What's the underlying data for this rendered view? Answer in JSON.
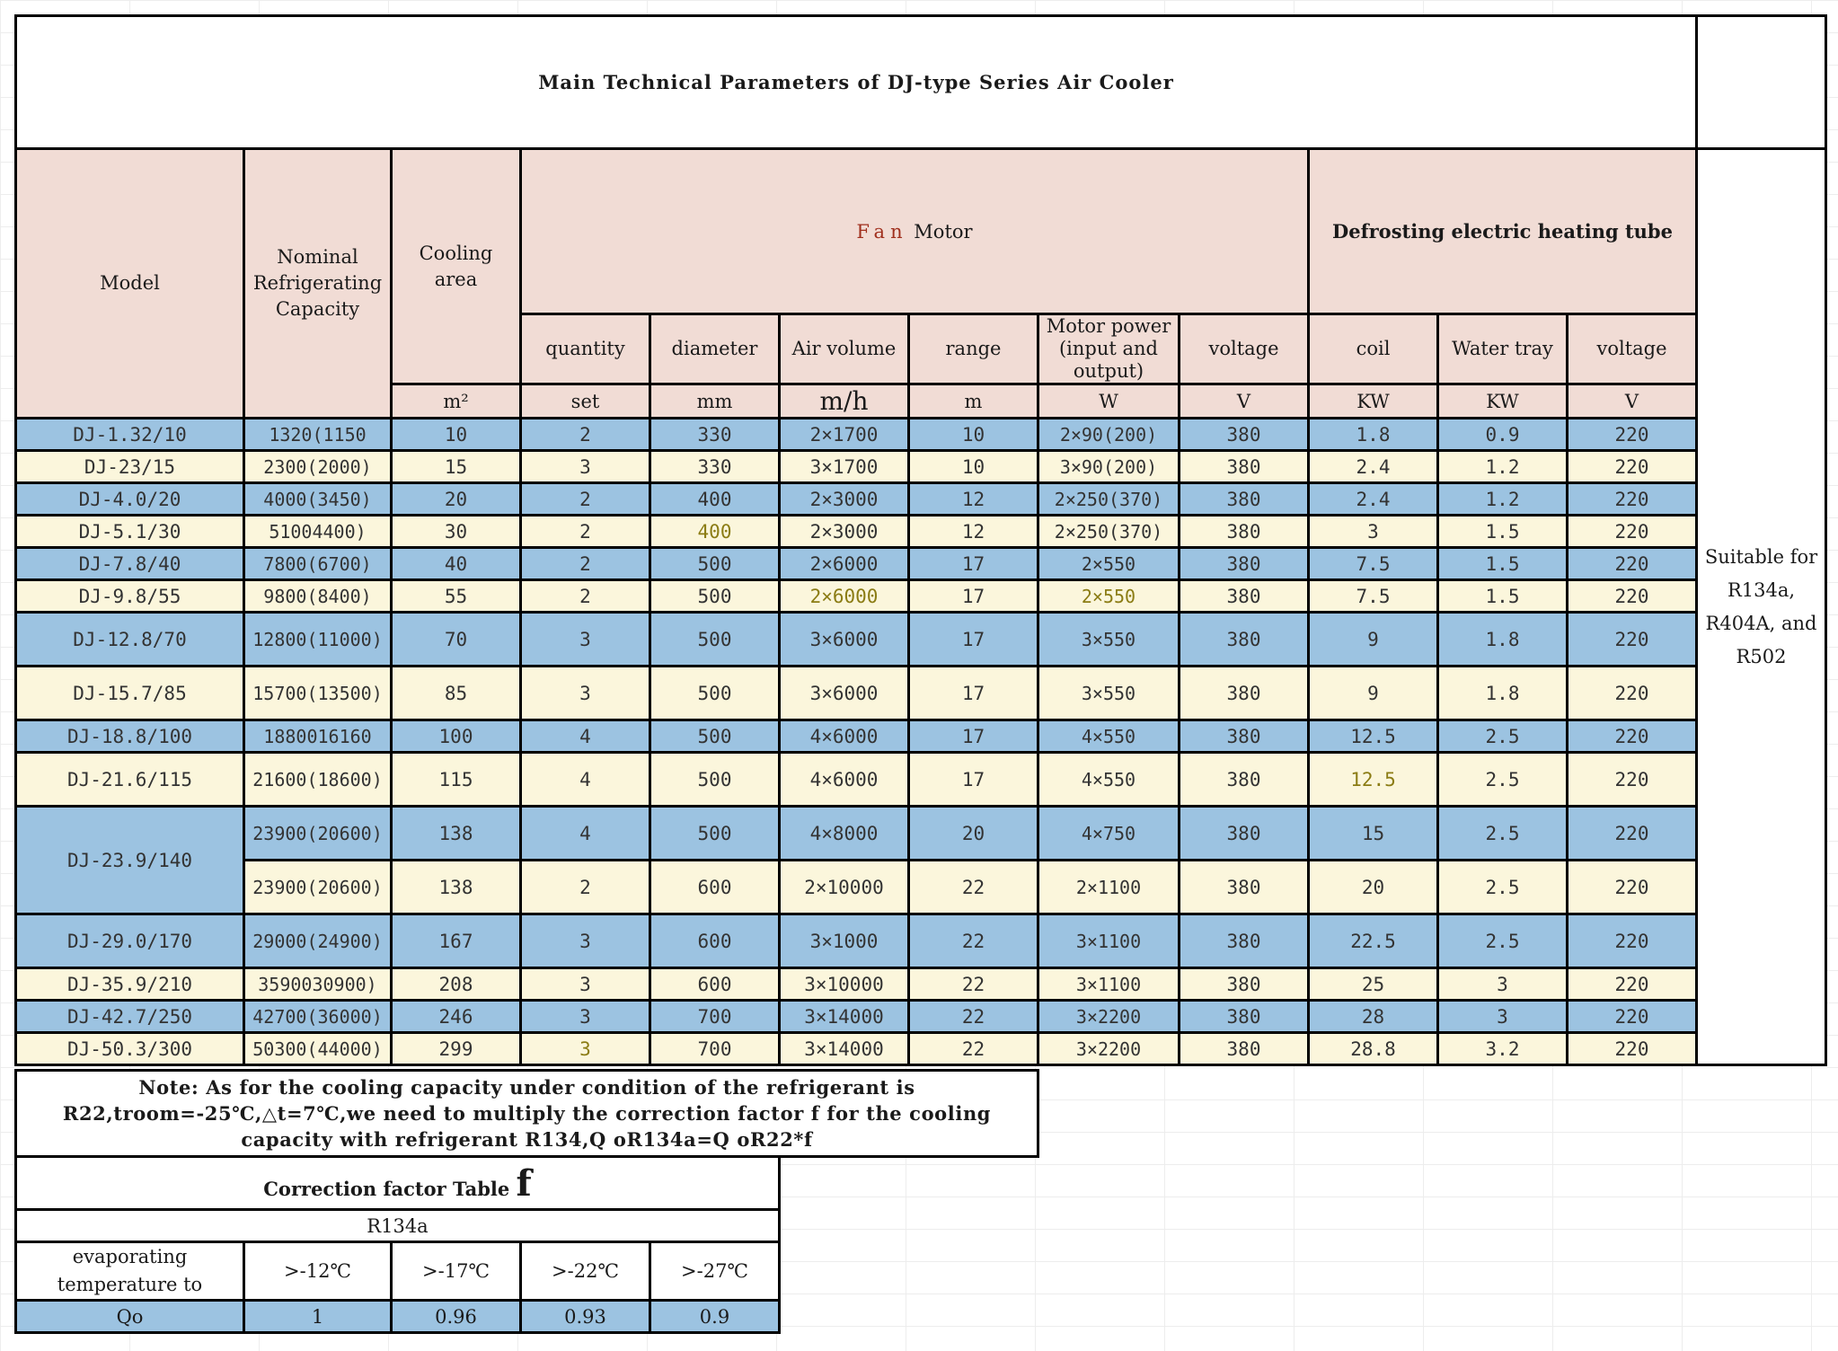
{
  "title": "Main Technical Parameters of DJ-type Series Air Cooler",
  "headers": {
    "model": "Model",
    "nominal": "Nominal Refrigerating Capacity",
    "cooling_area": "Cooling area",
    "fan_motor_fan": "Fan",
    "fan_motor_motor": "Motor",
    "defrost": "Defrosting electric heating tube",
    "quantity": "quantity",
    "diameter": "diameter",
    "air_volume": "Air volume",
    "range": "range",
    "motor_power": "Motor power (input and output)",
    "voltage_fan": "voltage",
    "coil": "coil",
    "water_tray": "Water tray",
    "voltage_def": "voltage"
  },
  "units": {
    "cooling_area": "m²",
    "quantity": "set",
    "diameter": "mm",
    "air_volume": "m/h",
    "range": "m",
    "motor_power": "W",
    "voltage_fan": "V",
    "coil": "KW",
    "water_tray": "KW",
    "voltage_def": "V"
  },
  "rows": [
    {
      "model": "DJ-1.32/10",
      "cap": "1320(1150",
      "area": "10",
      "qty": "2",
      "dia": "330",
      "air": "2×1700",
      "range": "10",
      "power": "2×90(200)",
      "v1": "380",
      "coil": "1.8",
      "tray": "0.9",
      "v2": "220"
    },
    {
      "model": "DJ-23/15",
      "cap": "2300(2000)",
      "area": "15",
      "qty": "3",
      "dia": "330",
      "air": "3×1700",
      "range": "10",
      "power": "3×90(200)",
      "v1": "380",
      "coil": "2.4",
      "tray": "1.2",
      "v2": "220"
    },
    {
      "model": "DJ-4.0/20",
      "cap": "4000(3450)",
      "area": "20",
      "qty": "2",
      "dia": "400",
      "air": "2×3000",
      "range": "12",
      "power": "2×250(370)",
      "v1": "380",
      "coil": "2.4",
      "tray": "1.2",
      "v2": "220"
    },
    {
      "model": "DJ-5.1/30",
      "cap": "51004400)",
      "area": "30",
      "qty": "2",
      "dia": "400",
      "air": "2×3000",
      "range": "12",
      "power": "2×250(370)",
      "v1": "380",
      "coil": "3",
      "tray": "1.5",
      "v2": "220"
    },
    {
      "model": "DJ-7.8/40",
      "cap": "7800(6700)",
      "area": "40",
      "qty": "2",
      "dia": "500",
      "air": "2×6000",
      "range": "17",
      "power": "2×550",
      "v1": "380",
      "coil": "7.5",
      "tray": "1.5",
      "v2": "220"
    },
    {
      "model": "DJ-9.8/55",
      "cap": "9800(8400)",
      "area": "55",
      "qty": "2",
      "dia": "500",
      "air": "2×6000",
      "range": "17",
      "power": "2×550",
      "v1": "380",
      "coil": "7.5",
      "tray": "1.5",
      "v2": "220"
    },
    {
      "model": "DJ-12.8/70",
      "cap": "12800(11000)",
      "area": "70",
      "qty": "3",
      "dia": "500",
      "air": "3×6000",
      "range": "17",
      "power": "3×550",
      "v1": "380",
      "coil": "9",
      "tray": "1.8",
      "v2": "220"
    },
    {
      "model": "DJ-15.7/85",
      "cap": "15700(13500)",
      "area": "85",
      "qty": "3",
      "dia": "500",
      "air": "3×6000",
      "range": "17",
      "power": "3×550",
      "v1": "380",
      "coil": "9",
      "tray": "1.8",
      "v2": "220"
    },
    {
      "model": "DJ-18.8/100",
      "cap": "1880016160",
      "area": "100",
      "qty": "4",
      "dia": "500",
      "air": "4×6000",
      "range": "17",
      "power": "4×550",
      "v1": "380",
      "coil": "12.5",
      "tray": "2.5",
      "v2": "220"
    },
    {
      "model": "DJ-21.6/115",
      "cap": "21600(18600)",
      "area": "115",
      "qty": "4",
      "dia": "500",
      "air": "4×6000",
      "range": "17",
      "power": "4×550",
      "v1": "380",
      "coil": "12.5",
      "tray": "2.5",
      "v2": "220"
    },
    {
      "model": "DJ-23.9/140",
      "cap": "23900(20600)",
      "area": "138",
      "qty": "4",
      "dia": "500",
      "air": "4×8000",
      "range": "20",
      "power": "4×750",
      "v1": "380",
      "coil": "15",
      "tray": "2.5",
      "v2": "220"
    },
    {
      "model": "",
      "cap": "23900(20600)",
      "area": "138",
      "qty": "2",
      "dia": "600",
      "air": "2×10000",
      "range": "22",
      "power": "2×1100",
      "v1": "380",
      "coil": "20",
      "tray": "2.5",
      "v2": "220"
    },
    {
      "model": "DJ-29.0/170",
      "cap": "29000(24900)",
      "area": "167",
      "qty": "3",
      "dia": "600",
      "air": "3×1000",
      "range": "22",
      "power": "3×1100",
      "v1": "380",
      "coil": "22.5",
      "tray": "2.5",
      "v2": "220"
    },
    {
      "model": "DJ-35.9/210",
      "cap": "3590030900)",
      "area": "208",
      "qty": "3",
      "dia": "600",
      "air": "3×10000",
      "range": "22",
      "power": "3×1100",
      "v1": "380",
      "coil": "25",
      "tray": "3",
      "v2": "220"
    },
    {
      "model": "DJ-42.7/250",
      "cap": "42700(36000)",
      "area": "246",
      "qty": "3",
      "dia": "700",
      "air": "3×14000",
      "range": "22",
      "power": "3×2200",
      "v1": "380",
      "coil": "28",
      "tray": "3",
      "v2": "220"
    },
    {
      "model": "DJ-50.3/300",
      "cap": "50300(44000)",
      "area": "299",
      "qty": "3",
      "dia": "700",
      "air": "3×14000",
      "range": "22",
      "power": "3×2200",
      "v1": "380",
      "coil": "28.8",
      "tray": "3.2",
      "v2": "220"
    }
  ],
  "suitable": "Suitable for R134a, R404A, and R502",
  "note": "Note: As for the cooling capacity under condition of the refrigerant is R22,troom=-25℃,△t=7℃,we need to multiply the correction factor f for the cooling capacity with refrigerant R134,Q oR134a=Q oR22*f",
  "correction": {
    "title": "Correction factor Table",
    "title_f": "f",
    "refrigerant": "R134a",
    "evap_label": "evaporating temperature to",
    "temps": [
      ">-12℃",
      ">-17℃",
      ">-22℃",
      ">-27℃"
    ],
    "qo_label": "Qo",
    "qo_values": [
      "1",
      "0.96",
      "0.93",
      "0.9"
    ]
  }
}
